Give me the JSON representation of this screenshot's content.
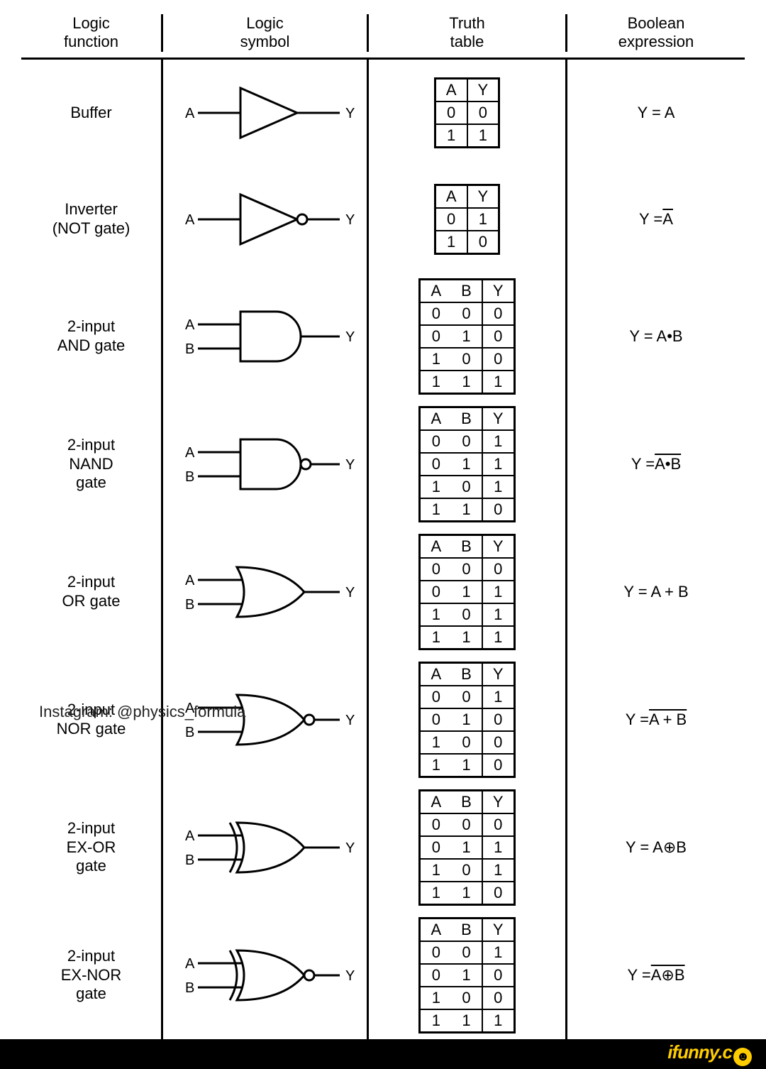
{
  "headers": {
    "c1": "Logic\nfunction",
    "c2": "Logic\nsymbol",
    "c3": "Truth\ntable",
    "c4": "Boolean\nexpression"
  },
  "watermark": "Instagram: @physics_formula",
  "footer": "ifunny.c",
  "gates": [
    {
      "name": "Buffer",
      "inputs": [
        "A"
      ],
      "output": "Y",
      "type": "buffer",
      "bubble": false,
      "tt": {
        "cols": [
          "A",
          "Y"
        ],
        "rows": [
          [
            "0",
            "0"
          ],
          [
            "1",
            "1"
          ]
        ]
      },
      "expr": {
        "pre": "Y = ",
        "t": "A",
        "ov": false
      }
    },
    {
      "name": "Inverter\n(NOT gate)",
      "inputs": [
        "A"
      ],
      "output": "Y",
      "type": "buffer",
      "bubble": true,
      "tt": {
        "cols": [
          "A",
          "Y"
        ],
        "rows": [
          [
            "0",
            "1"
          ],
          [
            "1",
            "0"
          ]
        ]
      },
      "expr": {
        "pre": "Y = ",
        "t": "A",
        "ov": true
      }
    },
    {
      "name": "2-input\nAND gate",
      "inputs": [
        "A",
        "B"
      ],
      "output": "Y",
      "type": "and",
      "bubble": false,
      "tt": {
        "cols": [
          "A",
          "B",
          "Y"
        ],
        "rows": [
          [
            "0",
            "0",
            "0"
          ],
          [
            "0",
            "1",
            "0"
          ],
          [
            "1",
            "0",
            "0"
          ],
          [
            "1",
            "1",
            "1"
          ]
        ]
      },
      "expr": {
        "pre": "Y = ",
        "t": "A•B",
        "ov": false
      }
    },
    {
      "name": "2-input\nNAND\ngate",
      "inputs": [
        "A",
        "B"
      ],
      "output": "Y",
      "type": "and",
      "bubble": true,
      "tt": {
        "cols": [
          "A",
          "B",
          "Y"
        ],
        "rows": [
          [
            "0",
            "0",
            "1"
          ],
          [
            "0",
            "1",
            "1"
          ],
          [
            "1",
            "0",
            "1"
          ],
          [
            "1",
            "1",
            "0"
          ]
        ]
      },
      "expr": {
        "pre": "Y = ",
        "t": "A•B",
        "ov": true
      }
    },
    {
      "name": "2-input\nOR gate",
      "inputs": [
        "A",
        "B"
      ],
      "output": "Y",
      "type": "or",
      "bubble": false,
      "tt": {
        "cols": [
          "A",
          "B",
          "Y"
        ],
        "rows": [
          [
            "0",
            "0",
            "0"
          ],
          [
            "0",
            "1",
            "1"
          ],
          [
            "1",
            "0",
            "1"
          ],
          [
            "1",
            "1",
            "1"
          ]
        ]
      },
      "expr": {
        "pre": "Y = ",
        "t": "A + B",
        "ov": false
      }
    },
    {
      "name": "2-input\nNOR gate",
      "inputs": [
        "A",
        "B"
      ],
      "output": "Y",
      "type": "or",
      "bubble": true,
      "tt": {
        "cols": [
          "A",
          "B",
          "Y"
        ],
        "rows": [
          [
            "0",
            "0",
            "1"
          ],
          [
            "0",
            "1",
            "0"
          ],
          [
            "1",
            "0",
            "0"
          ],
          [
            "1",
            "1",
            "0"
          ]
        ]
      },
      "expr": {
        "pre": "Y = ",
        "t": "A + B",
        "ov": true
      }
    },
    {
      "name": "2-input\nEX-OR\ngate",
      "inputs": [
        "A",
        "B"
      ],
      "output": "Y",
      "type": "xor",
      "bubble": false,
      "tt": {
        "cols": [
          "A",
          "B",
          "Y"
        ],
        "rows": [
          [
            "0",
            "0",
            "0"
          ],
          [
            "0",
            "1",
            "1"
          ],
          [
            "1",
            "0",
            "1"
          ],
          [
            "1",
            "1",
            "0"
          ]
        ]
      },
      "expr": {
        "pre": "Y = ",
        "t": "A⊕B",
        "ov": false
      }
    },
    {
      "name": "2-input\nEX-NOR\ngate",
      "inputs": [
        "A",
        "B"
      ],
      "output": "Y",
      "type": "xor",
      "bubble": true,
      "tt": {
        "cols": [
          "A",
          "B",
          "Y"
        ],
        "rows": [
          [
            "0",
            "0",
            "1"
          ],
          [
            "0",
            "1",
            "0"
          ],
          [
            "1",
            "0",
            "0"
          ],
          [
            "1",
            "1",
            "1"
          ]
        ]
      },
      "expr": {
        "pre": "Y = ",
        "t": "A⊕B",
        "ov": true
      }
    }
  ],
  "style": {
    "stroke": "#000",
    "sw": 3,
    "bg": "#fff",
    "footer_bg": "#000",
    "ifunny_color": "#ffcc00"
  }
}
